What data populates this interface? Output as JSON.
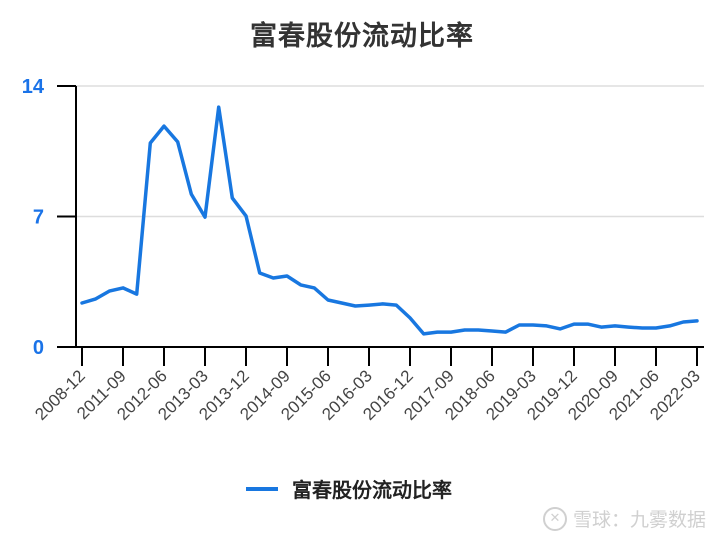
{
  "title": "富春股份流动比率",
  "colors": {
    "line": "#1877e0",
    "ytick": "#1a73e8",
    "grid": "#dddddd",
    "axis": "#000000"
  },
  "legend": {
    "label": "富春股份流动比率"
  },
  "watermark": {
    "icon": "xueqiu-logo",
    "text": "雪球：九雾数据"
  },
  "chart_data": {
    "type": "line",
    "title": "富春股份流动比率",
    "xlabel": "",
    "ylabel": "",
    "ylim": [
      0,
      14
    ],
    "yticks": [
      0,
      7,
      14
    ],
    "grid": true,
    "legend_position": "bottom",
    "x_tick_labels": [
      "2008-12",
      "2011-09",
      "2012-06",
      "2013-03",
      "2013-12",
      "2014-09",
      "2015-06",
      "2016-03",
      "2016-12",
      "2017-09",
      "2018-06",
      "2019-03",
      "2019-12",
      "2020-09",
      "2021-06",
      "2022-03"
    ],
    "x_tick_every": 3,
    "series": [
      {
        "name": "富春股份流动比率",
        "values": [
          2.36,
          2.58,
          3.0,
          3.17,
          2.84,
          10.94,
          11.85,
          11.0,
          8.2,
          6.97,
          12.87,
          7.99,
          7.03,
          3.97,
          3.7,
          3.81,
          3.33,
          3.17,
          2.52,
          2.36,
          2.2,
          2.25,
          2.31,
          2.25,
          1.56,
          0.7,
          0.8,
          0.8,
          0.91,
          0.91,
          0.86,
          0.8,
          1.18,
          1.18,
          1.13,
          0.97,
          1.23,
          1.23,
          1.07,
          1.13,
          1.07,
          1.02,
          1.02,
          1.13,
          1.34,
          1.4
        ]
      }
    ]
  }
}
